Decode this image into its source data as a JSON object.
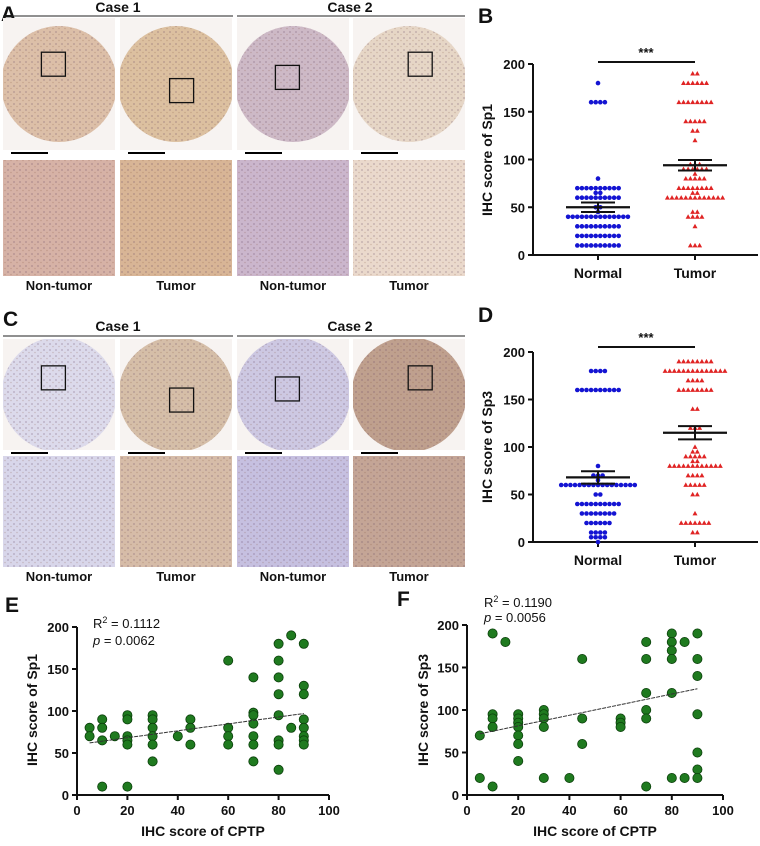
{
  "panels": {
    "A": {
      "letter": "A",
      "case1": "Case 1",
      "case2": "Case 2",
      "labels": [
        "Non-tumor",
        "Tumor",
        "Non-tumor",
        "Tumor"
      ]
    },
    "B": {
      "letter": "B"
    },
    "C": {
      "letter": "C",
      "case1": "Case 1",
      "case2": "Case 2",
      "labels": [
        "Non-tumor",
        "Tumor",
        "Non-tumor",
        "Tumor"
      ]
    },
    "D": {
      "letter": "D"
    },
    "E": {
      "letter": "E"
    },
    "F": {
      "letter": "F"
    }
  },
  "histology_colors": {
    "A": {
      "cores": [
        "#dcbfa8",
        "#dcc0a0",
        "#cdb9c6",
        "#e6d6c6"
      ],
      "details": [
        "#d6b2a6",
        "#d8b596",
        "#cbb6cc",
        "#ead9cc"
      ]
    },
    "C": {
      "cores": [
        "#dcdaeb",
        "#d5bea8",
        "#cdc8e2",
        "#bfa08e"
      ],
      "details": [
        "#d8d6ea",
        "#d6bca8",
        "#c6c0e0",
        "#c4a596"
      ]
    }
  },
  "chart_data": [
    {
      "type": "scatter",
      "subtype": "dot-plot",
      "panel": "B",
      "categories": [
        "Normal",
        "Tumor"
      ],
      "ylabel": "IHC score of Sp1",
      "ylim": [
        0,
        200
      ],
      "yticks": [
        0,
        50,
        100,
        150,
        200
      ],
      "significance": "***",
      "colors": [
        "#1414d2",
        "#e02424"
      ],
      "markers": [
        "circle",
        "triangle"
      ],
      "groups": [
        {
          "category": "Normal",
          "mean": 50,
          "sem": 5,
          "value_counts": [
            [
              180,
              1
            ],
            [
              160,
              4
            ],
            [
              80,
              1
            ],
            [
              70,
              10
            ],
            [
              65,
              2
            ],
            [
              60,
              10
            ],
            [
              50,
              2
            ],
            [
              45,
              1
            ],
            [
              40,
              14
            ],
            [
              30,
              10
            ],
            [
              20,
              10
            ],
            [
              10,
              10
            ]
          ]
        },
        {
          "category": "Tumor",
          "mean": 94,
          "sem": 5.5,
          "value_counts": [
            [
              190,
              2
            ],
            [
              180,
              6
            ],
            [
              160,
              8
            ],
            [
              140,
              5
            ],
            [
              130,
              2
            ],
            [
              120,
              1
            ],
            [
              95,
              3
            ],
            [
              90,
              6
            ],
            [
              85,
              1
            ],
            [
              80,
              5
            ],
            [
              70,
              8
            ],
            [
              65,
              2
            ],
            [
              60,
              13
            ],
            [
              45,
              2
            ],
            [
              40,
              4
            ],
            [
              30,
              1
            ],
            [
              10,
              3
            ]
          ]
        }
      ]
    },
    {
      "type": "scatter",
      "subtype": "dot-plot",
      "panel": "D",
      "categories": [
        "Normal",
        "Tumor"
      ],
      "ylabel": "IHC score of Sp3",
      "ylim": [
        0,
        200
      ],
      "yticks": [
        0,
        50,
        100,
        150,
        200
      ],
      "significance": "***",
      "colors": [
        "#1414d2",
        "#e02424"
      ],
      "markers": [
        "circle",
        "triangle"
      ],
      "groups": [
        {
          "category": "Normal",
          "mean": 68,
          "sem": 6.5,
          "value_counts": [
            [
              180,
              4
            ],
            [
              160,
              10
            ],
            [
              80,
              1
            ],
            [
              70,
              3
            ],
            [
              65,
              1
            ],
            [
              60,
              17
            ],
            [
              50,
              2
            ],
            [
              40,
              10
            ],
            [
              30,
              8
            ],
            [
              20,
              6
            ],
            [
              10,
              4
            ],
            [
              5,
              4
            ],
            [
              0,
              1
            ]
          ]
        },
        {
          "category": "Tumor",
          "mean": 115,
          "sem": 7,
          "value_counts": [
            [
              190,
              8
            ],
            [
              180,
              14
            ],
            [
              170,
              4
            ],
            [
              160,
              8
            ],
            [
              140,
              2
            ],
            [
              120,
              3
            ],
            [
              100,
              1
            ],
            [
              95,
              2
            ],
            [
              90,
              5
            ],
            [
              85,
              2
            ],
            [
              80,
              12
            ],
            [
              70,
              4
            ],
            [
              60,
              5
            ],
            [
              50,
              2
            ],
            [
              30,
              1
            ],
            [
              20,
              7
            ],
            [
              10,
              2
            ]
          ]
        }
      ]
    },
    {
      "type": "scatter",
      "panel": "E",
      "xlabel": "IHC score of CPTP",
      "ylabel": "IHC score of Sp1",
      "xlim": [
        0,
        100
      ],
      "ylim": [
        0,
        200
      ],
      "xticks": [
        0,
        20,
        40,
        60,
        80,
        100
      ],
      "yticks": [
        0,
        50,
        100,
        150,
        200
      ],
      "color": "#1f7a1f",
      "stats": {
        "r_symbol": "R",
        "r_exponent": "2",
        "r_squared": " = 0.1112",
        "p_symbol": "p",
        "p_value": " = 0.0062"
      },
      "fit_line": [
        [
          5,
          62
        ],
        [
          90,
          97
        ]
      ],
      "points": [
        [
          5,
          80
        ],
        [
          5,
          70
        ],
        [
          10,
          90
        ],
        [
          10,
          80
        ],
        [
          10,
          65
        ],
        [
          10,
          10
        ],
        [
          15,
          70
        ],
        [
          20,
          95
        ],
        [
          20,
          90
        ],
        [
          20,
          70
        ],
        [
          20,
          65
        ],
        [
          20,
          60
        ],
        [
          20,
          10
        ],
        [
          30,
          95
        ],
        [
          30,
          90
        ],
        [
          30,
          80
        ],
        [
          30,
          70
        ],
        [
          30,
          60
        ],
        [
          30,
          40
        ],
        [
          40,
          70
        ],
        [
          45,
          90
        ],
        [
          45,
          80
        ],
        [
          45,
          60
        ],
        [
          60,
          160
        ],
        [
          60,
          80
        ],
        [
          60,
          70
        ],
        [
          60,
          60
        ],
        [
          70,
          140
        ],
        [
          70,
          98
        ],
        [
          70,
          95
        ],
        [
          70,
          85
        ],
        [
          70,
          70
        ],
        [
          70,
          60
        ],
        [
          70,
          40
        ],
        [
          80,
          180
        ],
        [
          80,
          160
        ],
        [
          80,
          140
        ],
        [
          80,
          120
        ],
        [
          80,
          95
        ],
        [
          80,
          65
        ],
        [
          80,
          60
        ],
        [
          80,
          30
        ],
        [
          85,
          190
        ],
        [
          85,
          80
        ],
        [
          90,
          180
        ],
        [
          90,
          130
        ],
        [
          90,
          120
        ],
        [
          90,
          90
        ],
        [
          90,
          80
        ],
        [
          90,
          70
        ],
        [
          90,
          65
        ],
        [
          90,
          60
        ]
      ]
    },
    {
      "type": "scatter",
      "panel": "F",
      "xlabel": "IHC score of CPTP",
      "ylabel": "IHC score of Sp3",
      "xlim": [
        0,
        100
      ],
      "ylim": [
        0,
        200
      ],
      "xticks": [
        0,
        20,
        40,
        60,
        80,
        100
      ],
      "yticks": [
        0,
        50,
        100,
        150,
        200
      ],
      "color": "#1f7a1f",
      "stats": {
        "r_symbol": "R",
        "r_exponent": "2",
        "r_squared": " = 0.1190",
        "p_symbol": "p",
        "p_value": " = 0.0056"
      },
      "fit_line": [
        [
          5,
          72
        ],
        [
          90,
          125
        ]
      ],
      "points": [
        [
          5,
          70
        ],
        [
          5,
          20
        ],
        [
          10,
          190
        ],
        [
          10,
          95
        ],
        [
          10,
          90
        ],
        [
          10,
          80
        ],
        [
          10,
          10
        ],
        [
          15,
          180
        ],
        [
          20,
          95
        ],
        [
          20,
          90
        ],
        [
          20,
          85
        ],
        [
          20,
          80
        ],
        [
          20,
          70
        ],
        [
          20,
          60
        ],
        [
          20,
          40
        ],
        [
          30,
          100
        ],
        [
          30,
          95
        ],
        [
          30,
          90
        ],
        [
          30,
          80
        ],
        [
          30,
          20
        ],
        [
          40,
          20
        ],
        [
          45,
          160
        ],
        [
          45,
          90
        ],
        [
          45,
          60
        ],
        [
          60,
          90
        ],
        [
          60,
          85
        ],
        [
          60,
          80
        ],
        [
          70,
          180
        ],
        [
          70,
          160
        ],
        [
          70,
          120
        ],
        [
          70,
          100
        ],
        [
          70,
          90
        ],
        [
          70,
          10
        ],
        [
          80,
          190
        ],
        [
          80,
          180
        ],
        [
          80,
          170
        ],
        [
          80,
          160
        ],
        [
          80,
          120
        ],
        [
          80,
          20
        ],
        [
          85,
          180
        ],
        [
          85,
          20
        ],
        [
          90,
          190
        ],
        [
          90,
          160
        ],
        [
          90,
          140
        ],
        [
          90,
          95
        ],
        [
          90,
          50
        ],
        [
          90,
          30
        ],
        [
          90,
          20
        ]
      ]
    }
  ]
}
